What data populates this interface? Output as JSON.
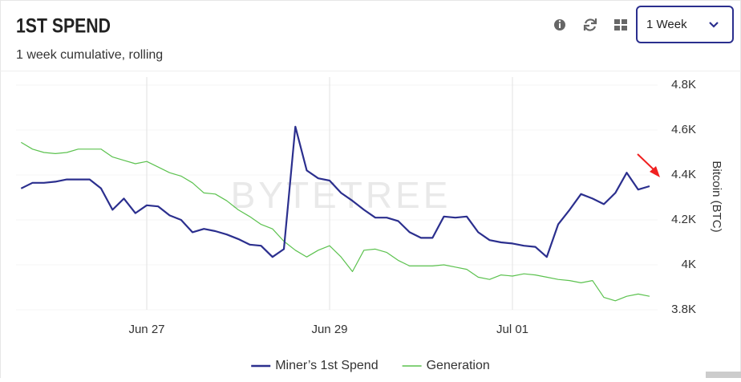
{
  "header": {
    "title": "1ST SPEND",
    "subtitle": "1 week cumulative, rolling"
  },
  "controls": {
    "range": "1 Week"
  },
  "chart_data": {
    "type": "line",
    "watermark": "BYTETREE",
    "y_label": "Bitcoin (BTC)",
    "categories": [
      null,
      null,
      null,
      null,
      null,
      null,
      null,
      null,
      null,
      null,
      null,
      "Jun 27",
      null,
      null,
      null,
      null,
      null,
      null,
      null,
      null,
      null,
      null,
      null,
      null,
      null,
      null,
      null,
      "Jun 29",
      null,
      null,
      null,
      null,
      null,
      null,
      null,
      null,
      null,
      null,
      null,
      null,
      null,
      null,
      null,
      "Jul 01",
      null,
      null,
      null,
      null,
      null,
      null,
      null,
      null,
      null,
      null,
      null,
      null
    ],
    "series": [
      {
        "name": "Miner’s 1st Spend",
        "color": "#2b2f8e",
        "values": [
          4340,
          4365,
          4365,
          4370,
          4380,
          4380,
          4380,
          4340,
          4245,
          4295,
          4230,
          4265,
          4260,
          4220,
          4200,
          4145,
          4160,
          4150,
          4135,
          4115,
          4090,
          4085,
          4035,
          4070,
          4615,
          4420,
          4385,
          4375,
          4320,
          4285,
          4245,
          4210,
          4210,
          4195,
          4145,
          4120,
          4120,
          4215,
          4210,
          4215,
          4145,
          4110,
          4100,
          4095,
          4085,
          4080,
          4035,
          4180,
          4245,
          4315,
          4295,
          4270,
          4320,
          4410,
          4335,
          4350
        ]
      },
      {
        "name": "Generation",
        "color": "#5cc24f",
        "values": [
          4545,
          4515,
          4500,
          4495,
          4500,
          4515,
          4515,
          4515,
          4480,
          4465,
          4450,
          4460,
          4435,
          4410,
          4395,
          4365,
          4320,
          4315,
          4285,
          4245,
          4215,
          4180,
          4160,
          4105,
          4065,
          4035,
          4065,
          4085,
          4035,
          3970,
          4065,
          4070,
          4055,
          4020,
          3995,
          3995,
          3995,
          4000,
          3990,
          3980,
          3945,
          3935,
          3955,
          3950,
          3960,
          3955,
          3945,
          3935,
          3930,
          3920,
          3930,
          3855,
          3840,
          3860,
          3870,
          3860
        ]
      }
    ],
    "ylim": [
      3800,
      4800
    ],
    "yticks": [
      {
        "value": 3800,
        "label": "3.8K"
      },
      {
        "value": 4000,
        "label": "4K"
      },
      {
        "value": 4200,
        "label": "4.2K"
      },
      {
        "value": 4400,
        "label": "4.4K"
      },
      {
        "value": 4600,
        "label": "4.6K"
      },
      {
        "value": 4800,
        "label": "4.8K"
      }
    ],
    "x_grid": true
  }
}
